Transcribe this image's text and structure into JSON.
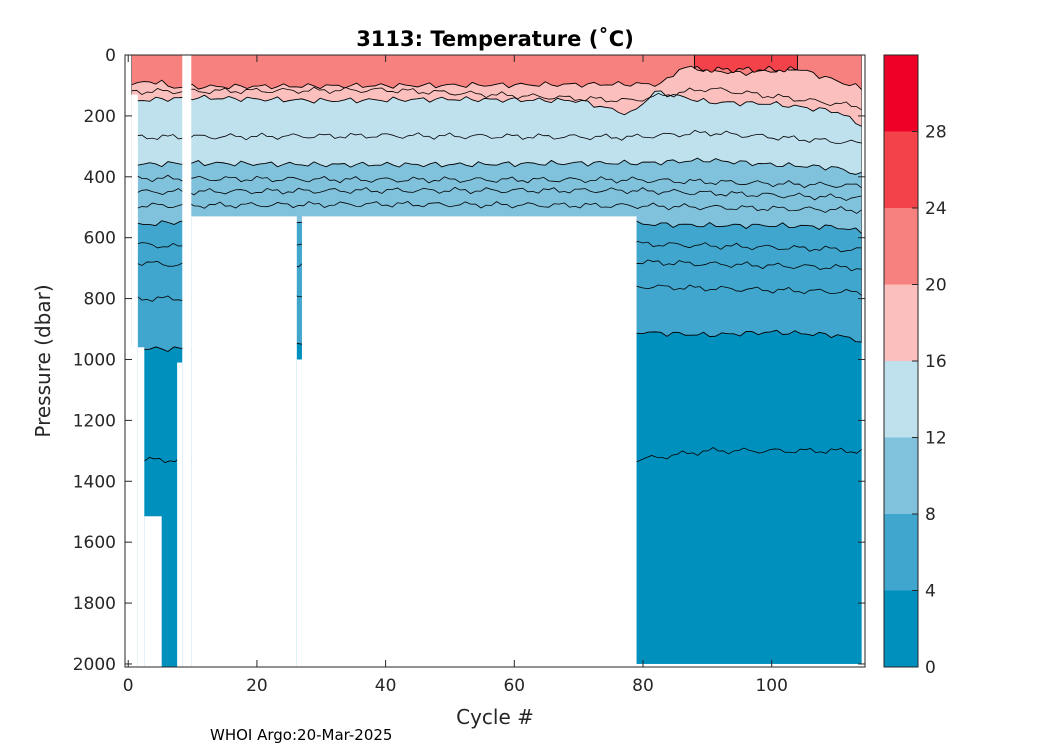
{
  "chart_data": {
    "type": "heatmap",
    "title": "3113:  Temperature (˚C)",
    "xlabel": "Cycle #",
    "ylabel": "Pressure (dbar)",
    "x_range": [
      -0.5,
      114.5
    ],
    "y_range": [
      0,
      2010
    ],
    "y_reversed": true,
    "x_ticks": [
      0,
      20,
      40,
      60,
      80,
      100
    ],
    "y_ticks": [
      0,
      200,
      400,
      600,
      800,
      1000,
      1200,
      1400,
      1600,
      1800,
      2000
    ],
    "colorbar": {
      "range": [
        0,
        32
      ],
      "ticks": [
        0,
        4,
        8,
        12,
        16,
        20,
        24,
        28
      ],
      "levels": [
        {
          "from": 0,
          "to": 4,
          "color": "#0090bd"
        },
        {
          "from": 4,
          "to": 8,
          "color": "#40a6cd"
        },
        {
          "from": 8,
          "to": 12,
          "color": "#80c1dc"
        },
        {
          "from": 12,
          "to": 16,
          "color": "#bfe1ee"
        },
        {
          "from": 16,
          "to": 20,
          "color": "#fbc0bd"
        },
        {
          "from": 20,
          "to": 24,
          "color": "#f7817e"
        },
        {
          "from": 24,
          "to": 28,
          "color": "#f34249"
        },
        {
          "from": 28,
          "to": 32,
          "color": "#ef0027"
        }
      ]
    },
    "isotherms_temperature_degC": [
      2,
      4,
      6,
      7,
      8,
      9,
      10,
      11,
      12,
      14,
      16,
      18,
      20,
      22,
      24
    ],
    "band_boundaries_dbar": [
      {
        "temp": 24,
        "x": [
          88,
          104
        ],
        "p": [
          48,
          48
        ]
      },
      {
        "temp": 20,
        "x": [
          0.5,
          5,
          6,
          83,
          86,
          95,
          104,
          114
        ],
        "p": [
          95,
          85,
          105,
          95,
          40,
          60,
          45,
          110
        ]
      },
      {
        "temp": 16,
        "x": [
          0.5,
          10,
          30,
          50,
          70,
          78,
          82,
          90,
          100,
          110,
          114
        ],
        "p": [
          150,
          140,
          150,
          145,
          150,
          195,
          120,
          155,
          160,
          185,
          230
        ]
      },
      {
        "temp": 12,
        "x": [
          0.5,
          10,
          30,
          50,
          70,
          80,
          90,
          100,
          110,
          114
        ],
        "p": [
          360,
          355,
          360,
          360,
          355,
          355,
          345,
          360,
          370,
          395
        ]
      },
      {
        "temp": 8,
        "x": [
          0.5,
          10,
          30,
          50,
          70,
          80,
          90,
          100,
          110,
          114
        ],
        "p": [
          560,
          545,
          550,
          550,
          545,
          555,
          560,
          560,
          565,
          580
        ]
      },
      {
        "temp": 4,
        "x": [
          0.5,
          8,
          79,
          90,
          100,
          110,
          114
        ],
        "p": [
          965,
          965,
          910,
          920,
          910,
          920,
          940
        ]
      }
    ],
    "data_extent_dbar": [
      {
        "x": [
          0.5,
          1.5
        ],
        "pmin": 0,
        "pmax": 130
      },
      {
        "x": [
          1.5,
          2.5
        ],
        "pmin": 0,
        "pmax": 960
      },
      {
        "x": [
          2.5,
          5.2
        ],
        "pmin": 0,
        "pmax": 1515
      },
      {
        "x": [
          5.2,
          7.6
        ],
        "pmin": 0,
        "pmax": 2010
      },
      {
        "x": [
          7.6,
          8.4
        ],
        "pmin": 0,
        "pmax": 1010
      },
      {
        "x": [
          9.8,
          26.2
        ],
        "pmin": 0,
        "pmax": 530
      },
      {
        "x": [
          26.2,
          27.0
        ],
        "pmin": 0,
        "pmax": 1000
      },
      {
        "x": [
          27.0,
          79.0
        ],
        "pmin": 0,
        "pmax": 530
      },
      {
        "x": [
          79.0,
          114.0
        ],
        "pmin": 0,
        "pmax": 2000
      }
    ]
  },
  "footer": {
    "credit": "WHOI Argo:20-Mar-2025"
  }
}
